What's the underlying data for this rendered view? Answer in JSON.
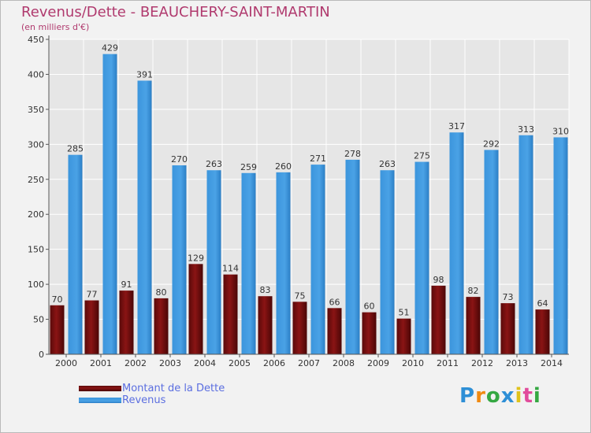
{
  "title": "Revenus/Dette - BEAUCHERY-SAINT-MARTIN",
  "subtitle": "(en milliers d'€)",
  "colors": {
    "dette": "#7a1010",
    "revenus": "#3b93d8",
    "title": "#b03a6e",
    "legend_text": "#5b6ee0"
  },
  "legend": {
    "items": [
      {
        "label": "Montant de la Dette",
        "color": "#7a1010"
      },
      {
        "label": "Revenus",
        "color": "#3b93d8"
      }
    ]
  },
  "logo": {
    "text": "Proxiti",
    "letters": [
      "P",
      "r",
      "o",
      "x",
      "i",
      "t",
      "i"
    ],
    "letter_colors": [
      "#2e8fd6",
      "#f08a12",
      "#35a842",
      "#2e8fd6",
      "#e0c21a",
      "#e14b9b",
      "#35a842"
    ]
  },
  "chart_data": {
    "type": "bar",
    "title": "Revenus/Dette - BEAUCHERY-SAINT-MARTIN",
    "subtitle": "(en milliers d'€)",
    "categories": [
      "2000",
      "2001",
      "2002",
      "2003",
      "2004",
      "2005",
      "2006",
      "2007",
      "2008",
      "2009",
      "2010",
      "2011",
      "2012",
      "2013",
      "2014"
    ],
    "series": [
      {
        "name": "Montant de la Dette",
        "values": [
          70,
          77,
          91,
          80,
          129,
          114,
          83,
          75,
          66,
          60,
          51,
          98,
          82,
          73,
          64
        ]
      },
      {
        "name": "Revenus",
        "values": [
          285,
          429,
          391,
          270,
          263,
          259,
          260,
          271,
          278,
          263,
          275,
          317,
          292,
          313,
          310
        ]
      }
    ],
    "ylim": [
      0,
      450
    ],
    "yticks": [
      0,
      50,
      100,
      150,
      200,
      250,
      300,
      350,
      400,
      450
    ],
    "grid": true,
    "legend_position": "bottom-left"
  }
}
